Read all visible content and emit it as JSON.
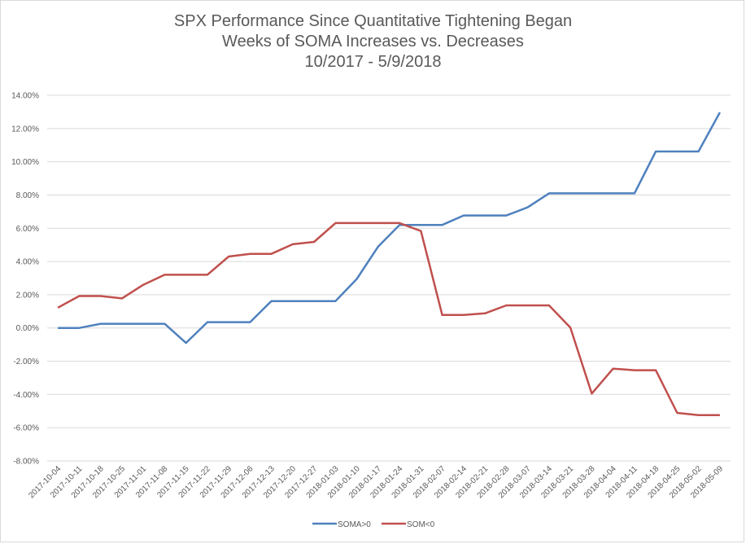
{
  "chart_data": {
    "type": "line",
    "title_lines": [
      "SPX Performance Since Quantitative Tightening Began",
      "Weeks of SOMA Increases vs. Decreases",
      "10/2017 - 5/9/2018"
    ],
    "xlabel": "",
    "ylabel": "",
    "ylim": [
      -0.08,
      0.14
    ],
    "y_ticks": [
      0.14,
      0.12,
      0.1,
      0.08,
      0.06,
      0.04,
      0.02,
      0.0,
      -0.02,
      -0.04,
      -0.06,
      -0.08
    ],
    "y_tick_labels": [
      "14.00%",
      "12.00%",
      "10.00%",
      "8.00%",
      "6.00%",
      "4.00%",
      "2.00%",
      "0.00%",
      "-2.00%",
      "-4.00%",
      "-6.00%",
      "-8.00%"
    ],
    "grid": "horizontal",
    "legend_position": "bottom",
    "categories": [
      "2017-10-04",
      "2017-10-11",
      "2017-10-18",
      "2017-10-25",
      "2017-11-01",
      "2017-11-08",
      "2017-11-15",
      "2017-11-22",
      "2017-11-29",
      "2017-12-06",
      "2017-12-13",
      "2017-12-20",
      "2017-12-27",
      "2018-01-03",
      "2018-01-10",
      "2018-01-17",
      "2018-01-24",
      "2018-01-31",
      "2018-02-07",
      "2018-02-14",
      "2018-02-21",
      "2018-02-28",
      "2018-03-07",
      "2018-03-14",
      "2018-03-21",
      "2018-03-28",
      "2018-04-04",
      "2018-04-11",
      "2018-04-18",
      "2018-04-25",
      "2018-05-02",
      "2018-05-09"
    ],
    "series": [
      {
        "name": "SOMA>0",
        "color": "#4f81bd",
        "values": [
          0.0,
          0.0,
          0.0025,
          0.0025,
          0.0025,
          0.0025,
          -0.009,
          0.0035,
          0.0035,
          0.0035,
          0.0162,
          0.0162,
          0.0162,
          0.0162,
          0.0295,
          0.049,
          0.062,
          0.062,
          0.062,
          0.0677,
          0.0677,
          0.0677,
          0.0726,
          0.081,
          0.081,
          0.081,
          0.081,
          0.081,
          0.1062,
          0.1062,
          0.1062,
          0.1297
        ]
      },
      {
        "name": "SOM<0",
        "color": "#c0504d",
        "values": [
          0.0122,
          0.0192,
          0.0192,
          0.0178,
          0.026,
          0.032,
          0.032,
          0.032,
          0.043,
          0.0446,
          0.0446,
          0.0504,
          0.0518,
          0.0631,
          0.0631,
          0.0631,
          0.0631,
          0.0583,
          0.0078,
          0.0078,
          0.0088,
          0.0136,
          0.0136,
          0.0136,
          0.0002,
          -0.0395,
          -0.0245,
          -0.0254,
          -0.0254,
          -0.0511,
          -0.0524,
          -0.0524
        ]
      }
    ]
  }
}
